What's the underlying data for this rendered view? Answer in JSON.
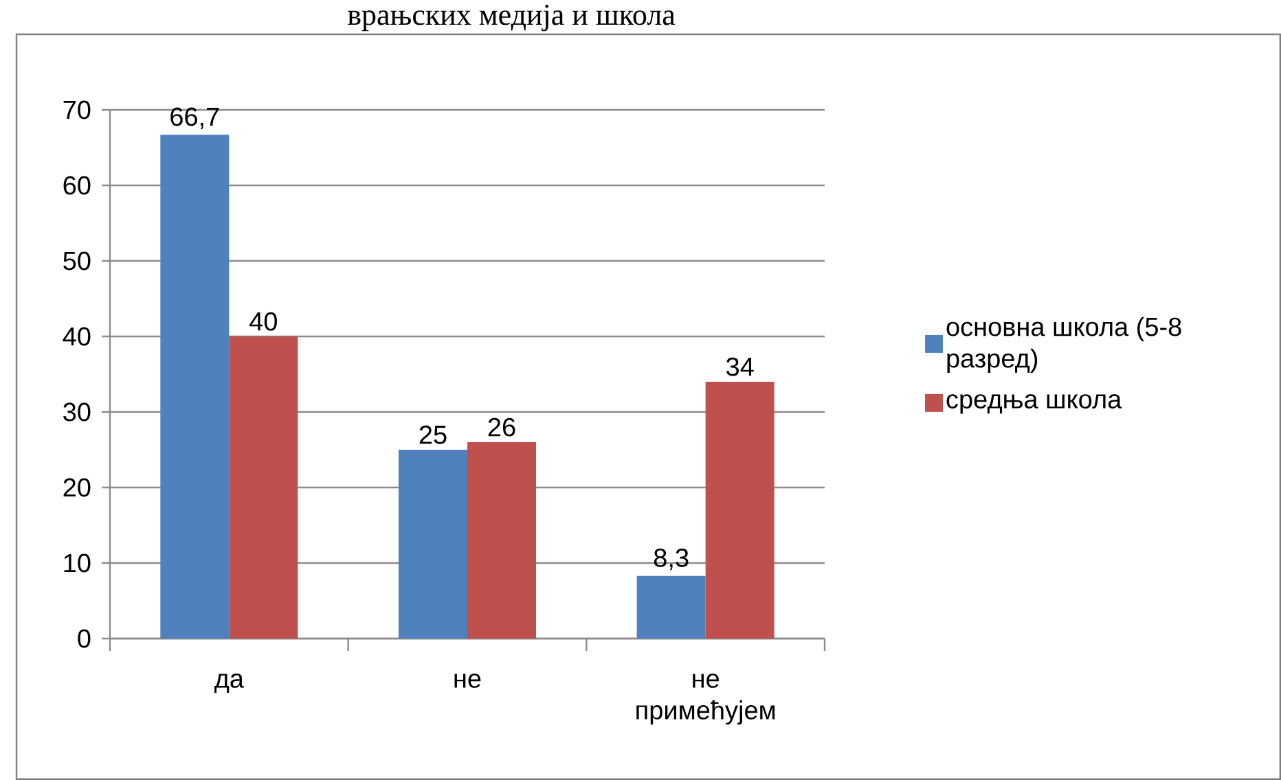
{
  "chart_data": {
    "type": "bar",
    "title": "врањских медија и школа",
    "categories": [
      "да",
      "не",
      "не примећујем"
    ],
    "series": [
      {
        "name": "основна школа (5-8 разред)",
        "color": "#4f81bd",
        "values": [
          66.7,
          25,
          8.3
        ],
        "value_labels": [
          "66,7",
          "25",
          "8,3"
        ]
      },
      {
        "name": "средња школа",
        "color": "#c0504d",
        "values": [
          40,
          26,
          34
        ],
        "value_labels": [
          "40",
          "26",
          "34"
        ]
      }
    ],
    "ylim": [
      0,
      70
    ],
    "yticks": [
      0,
      10,
      20,
      30,
      40,
      50,
      60,
      70
    ],
    "grid": "y",
    "legend": "right"
  }
}
